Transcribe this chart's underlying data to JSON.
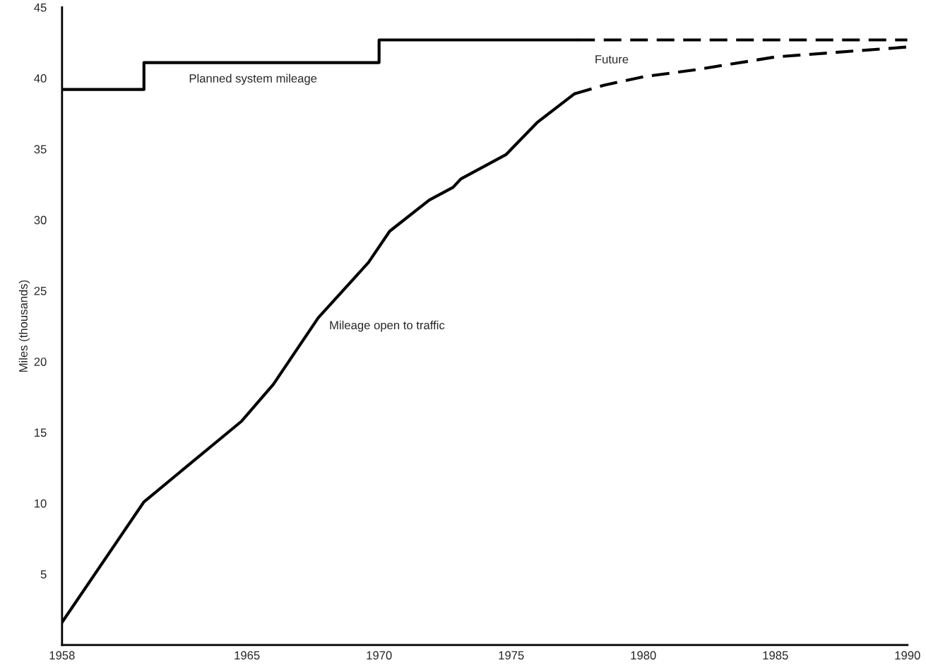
{
  "chart_data": {
    "type": "line",
    "ylabel": "Miles (thousands)",
    "xlim": [
      1958,
      1990
    ],
    "xticks": [
      1958,
      1965,
      1970,
      1975,
      1980,
      1985,
      1990
    ],
    "ylim": [
      0,
      45
    ],
    "yticks": [
      5,
      10,
      15,
      20,
      25,
      30,
      35,
      40,
      45
    ],
    "series": [
      {
        "type": "step",
        "color": "#000000",
        "line_style": "solid",
        "x": [
          1958,
          1961.1,
          1970,
          1977.5
        ],
        "values": [
          39.2,
          41.1,
          42.7,
          42.7
        ]
      },
      {
        "color": "#000000",
        "line_style": "dashed",
        "x": [
          1977.5,
          1990
        ],
        "values": [
          42.7,
          42.7
        ]
      },
      {
        "color": "#000000",
        "line_style": "solid",
        "x": [
          1958,
          1961.1,
          1964.8,
          1966.0,
          1967.7,
          1969.6,
          1970.4,
          1971.9,
          1972.8,
          1973.1,
          1974.8,
          1976.0,
          1977.4
        ],
        "values": [
          1.6,
          10.1,
          15.8,
          18.4,
          23.1,
          27.0,
          29.2,
          31.4,
          32.3,
          32.9,
          34.6,
          36.9,
          38.9
        ]
      },
      {
        "color": "#000000",
        "line_style": "dashed",
        "x": [
          1977.4,
          1978.5,
          1980,
          1982,
          1985,
          1990
        ],
        "values": [
          38.9,
          39.5,
          40.1,
          40.6,
          41.5,
          42.2
        ]
      }
    ],
    "annotations": [
      "Planned system mileage",
      "Future",
      "Mileage open to traffic"
    ],
    "grid": false
  }
}
